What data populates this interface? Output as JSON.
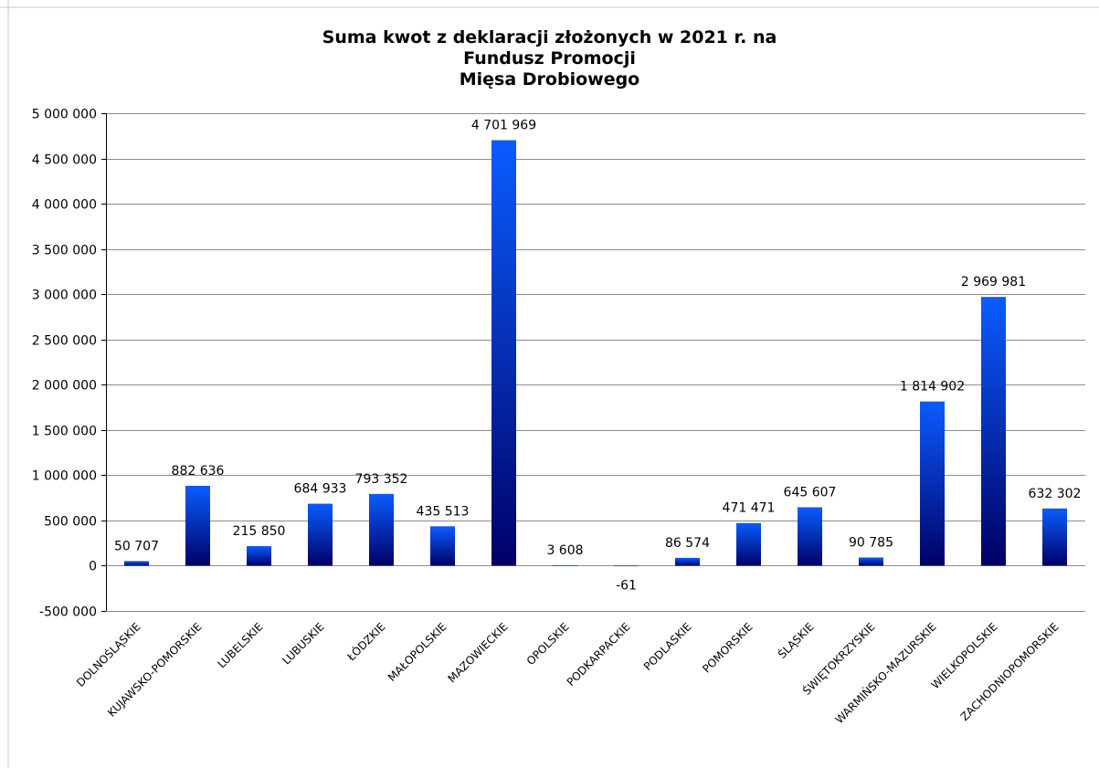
{
  "chart_data": {
    "type": "bar",
    "title_lines": [
      "Suma kwot z deklaracji złożonych w 2021 r. na",
      "Fundusz Promocji",
      "Mięsa Drobiowego"
    ],
    "categories": [
      "DOLNOŚLĄSKIE",
      "KUJAWSKO-POMORSKIE",
      "LUBELSKIE",
      "LUBUSKIE",
      "ŁÓDZKIE",
      "MAŁOPOLSKIE",
      "MAZOWIECKIE",
      "OPOLSKIE",
      "PODKARPACKIE",
      "PODLASKIE",
      "POMORSKIE",
      "ŚLĄSKIE",
      "ŚWIĘTOKRZYSKIE",
      "WARMIŃSKO-MAZURSKIE",
      "WIELKOPOLSKIE",
      "ZACHODNIOPOMORSKIE"
    ],
    "values": [
      50707,
      882636,
      215850,
      684933,
      793352,
      435513,
      4701969,
      3608,
      -61,
      86574,
      471471,
      645607,
      90785,
      1814902,
      2969981,
      632302
    ],
    "value_labels": [
      "50 707",
      "882 636",
      "215 850",
      "684 933",
      "793 352",
      "435 513",
      "4 701 969",
      "3 608",
      "-61",
      "86 574",
      "471 471",
      "645 607",
      "90 785",
      "1 814 902",
      "2 969 981",
      "632 302"
    ],
    "ylim": [
      -500000,
      5000000
    ],
    "yticks": [
      -500000,
      0,
      500000,
      1000000,
      1500000,
      2000000,
      2500000,
      3000000,
      3500000,
      4000000,
      4500000,
      5000000
    ],
    "ytick_labels": [
      "-500 000",
      "0",
      "500 000",
      "1 000 000",
      "1 500 000",
      "2 000 000",
      "2 500 000",
      "3 000 000",
      "3 500 000",
      "4 000 000",
      "4 500 000",
      "5 000 000"
    ],
    "grid": true,
    "legend": "none",
    "colors": {
      "bar_top": "#0a5cff",
      "bar_bottom": "#000066",
      "grid": "#8c8c8c"
    }
  }
}
